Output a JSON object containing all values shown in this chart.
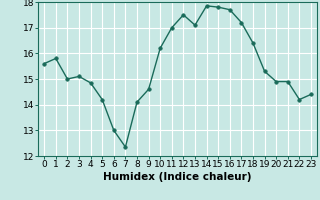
{
  "x": [
    0,
    1,
    2,
    3,
    4,
    5,
    6,
    7,
    8,
    9,
    10,
    11,
    12,
    13,
    14,
    15,
    16,
    17,
    18,
    19,
    20,
    21,
    22,
    23
  ],
  "y": [
    15.6,
    15.8,
    15.0,
    15.1,
    14.85,
    14.2,
    13.0,
    12.35,
    14.1,
    14.6,
    16.2,
    17.0,
    17.5,
    17.1,
    17.85,
    17.8,
    17.7,
    17.2,
    16.4,
    15.3,
    14.9,
    14.9,
    14.2,
    14.4
  ],
  "line_color": "#1a6b5a",
  "marker": "o",
  "markersize": 2.5,
  "linewidth": 1.0,
  "bg_color": "#c8e8e4",
  "grid_color": "#ffffff",
  "xlabel": "Humidex (Indice chaleur)",
  "xlabel_fontsize": 7.5,
  "tick_fontsize": 6.5,
  "ylim": [
    12,
    18
  ],
  "xlim": [
    -0.5,
    23.5
  ],
  "yticks": [
    12,
    13,
    14,
    15,
    16,
    17,
    18
  ],
  "xticks": [
    0,
    1,
    2,
    3,
    4,
    5,
    6,
    7,
    8,
    9,
    10,
    11,
    12,
    13,
    14,
    15,
    16,
    17,
    18,
    19,
    20,
    21,
    22,
    23
  ]
}
